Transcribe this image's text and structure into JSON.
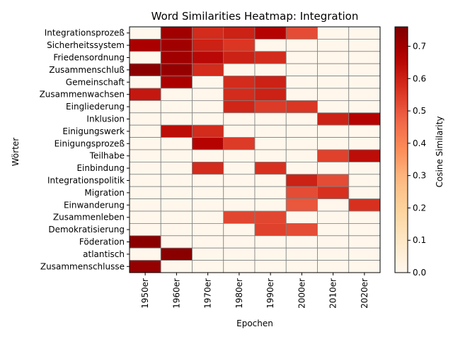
{
  "chart_data": {
    "type": "heatmap",
    "title": "Word Similarities Heatmap: Integration",
    "xlabel": "Epochen",
    "ylabel": "Wörter",
    "x": [
      "1950er",
      "1960er",
      "1970er",
      "1980er",
      "1990er",
      "2000er",
      "2010er",
      "2020er"
    ],
    "y": [
      "Integrationsprozeß",
      "Sicherheitssystem",
      "Friedensordnung",
      "Zusammenschluß",
      "Gemeinschaft",
      "Zusammenwachsen",
      "Eingliederung",
      "Inklusion",
      "Einigungswerk",
      "Einigungsprozeß",
      "Teilhabe",
      "Einbindung",
      "Integrationspolitik",
      "Migration",
      "Einwanderung",
      "Zusammenleben",
      "Demokratisierung",
      "Föderation",
      "atlantisch",
      "Zusammenschlusse"
    ],
    "values": [
      [
        0.0,
        0.7,
        0.58,
        0.6,
        0.66,
        0.52,
        0.0,
        0.0
      ],
      [
        0.68,
        0.7,
        0.6,
        0.56,
        0.0,
        0.0,
        0.0,
        0.0
      ],
      [
        0.0,
        0.7,
        0.65,
        0.6,
        0.58,
        0.0,
        0.0,
        0.0
      ],
      [
        0.74,
        0.72,
        0.58,
        0.0,
        0.0,
        0.0,
        0.0,
        0.0
      ],
      [
        0.0,
        0.68,
        0.0,
        0.58,
        0.6,
        0.0,
        0.0,
        0.0
      ],
      [
        0.62,
        0.0,
        0.0,
        0.58,
        0.6,
        0.0,
        0.0,
        0.0
      ],
      [
        0.0,
        0.0,
        0.0,
        0.59,
        0.55,
        0.56,
        0.0,
        0.0
      ],
      [
        0.0,
        0.0,
        0.0,
        0.0,
        0.0,
        0.0,
        0.6,
        0.66
      ],
      [
        0.0,
        0.64,
        0.58,
        0.0,
        0.0,
        0.0,
        0.0,
        0.0
      ],
      [
        0.0,
        0.0,
        0.66,
        0.55,
        0.0,
        0.0,
        0.0,
        0.0
      ],
      [
        0.0,
        0.0,
        0.0,
        0.0,
        0.0,
        0.0,
        0.54,
        0.64
      ],
      [
        0.0,
        0.0,
        0.58,
        0.0,
        0.57,
        0.0,
        0.0,
        0.0
      ],
      [
        0.0,
        0.0,
        0.0,
        0.0,
        0.0,
        0.6,
        0.52,
        0.0
      ],
      [
        0.0,
        0.0,
        0.0,
        0.0,
        0.0,
        0.52,
        0.57,
        0.0
      ],
      [
        0.0,
        0.0,
        0.0,
        0.0,
        0.0,
        0.5,
        0.0,
        0.57
      ],
      [
        0.0,
        0.0,
        0.0,
        0.53,
        0.53,
        0.0,
        0.0,
        0.0
      ],
      [
        0.0,
        0.0,
        0.0,
        0.0,
        0.54,
        0.52,
        0.0,
        0.0
      ],
      [
        0.74,
        0.0,
        0.0,
        0.0,
        0.0,
        0.0,
        0.0,
        0.0
      ],
      [
        0.0,
        0.74,
        0.0,
        0.0,
        0.0,
        0.0,
        0.0,
        0.0
      ],
      [
        0.72,
        0.0,
        0.0,
        0.0,
        0.0,
        0.0,
        0.0,
        0.0
      ]
    ],
    "colorbar": {
      "label": "Cosine Similarity",
      "min": 0.0,
      "max": 0.76,
      "ticks": [
        "0.0",
        "0.1",
        "0.2",
        "0.3",
        "0.4",
        "0.5",
        "0.6",
        "0.7"
      ],
      "colormap": "OrRd"
    },
    "cell_edge_color": "#808080"
  }
}
